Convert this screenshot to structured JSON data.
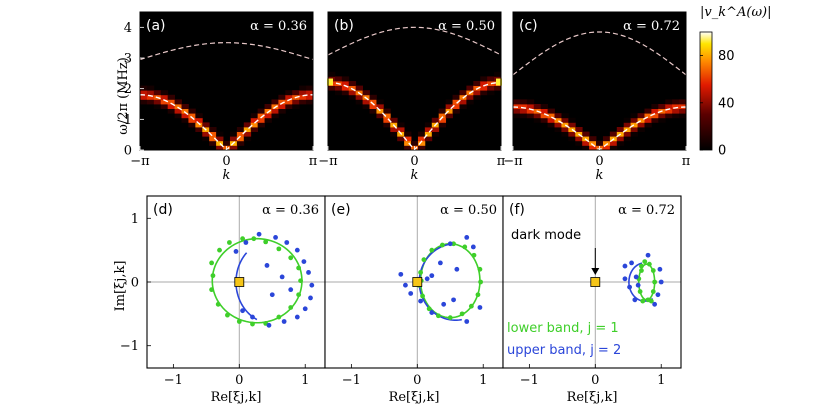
{
  "figure": {
    "top_ylabel": "ω/2π (MHz)",
    "bottom_ylabel": "Im[ξj,k]",
    "k_label": "k",
    "xlabel_bottom": "Re[ξj,k]",
    "colorbar": {
      "label": "|v_k^A(ω)|",
      "ticks": [
        0,
        40,
        80
      ],
      "range": [
        0,
        100
      ]
    }
  },
  "chart_data": [
    {
      "type": "heatmap",
      "panel": "(a)",
      "alpha_text": "α = 0.36",
      "alpha": 0.36,
      "xlim": [
        -3.1416,
        3.1416
      ],
      "ylim": [
        0,
        4.5
      ],
      "xticks": [
        {
          "v": -3.1416,
          "t": "−π"
        },
        {
          "v": 0,
          "t": "0"
        },
        {
          "v": 3.1416,
          "t": "π"
        }
      ],
      "yticks": [
        0,
        1,
        2,
        3,
        4
      ],
      "lower_band": {
        "offset": 0,
        "amplitude": 1.8
      },
      "upper_band": {
        "offset": 2.95,
        "amplitude": 0.55
      },
      "xlabel": "k"
    },
    {
      "type": "heatmap",
      "panel": "(b)",
      "alpha_text": "α = 0.50",
      "alpha": 0.5,
      "xlim": [
        -3.1416,
        3.1416
      ],
      "ylim": [
        0,
        4.5
      ],
      "xticks": [
        {
          "v": -3.1416,
          "t": "−π"
        },
        {
          "v": 0,
          "t": "0"
        },
        {
          "v": 3.1416,
          "t": "π"
        }
      ],
      "yticks": [
        0,
        1,
        2,
        3,
        4
      ],
      "lower_band": {
        "offset": 0,
        "amplitude": 2.2
      },
      "upper_band": {
        "offset": 3.1,
        "amplitude": 0.9
      },
      "xlabel": "k"
    },
    {
      "type": "heatmap",
      "panel": "(c)",
      "alpha_text": "α = 0.72",
      "alpha": 0.72,
      "xlim": [
        -3.1416,
        3.1416
      ],
      "ylim": [
        0,
        4.5
      ],
      "xticks": [
        {
          "v": -3.1416,
          "t": "−π"
        },
        {
          "v": 0,
          "t": "0"
        },
        {
          "v": 3.1416,
          "t": "π"
        }
      ],
      "yticks": [
        0,
        1,
        2,
        3,
        4
      ],
      "lower_band": {
        "offset": 0,
        "amplitude": 1.4
      },
      "upper_band": {
        "offset": 2.45,
        "amplitude": 1.4
      },
      "xlabel": "k"
    },
    {
      "type": "scatter",
      "panel": "(d)",
      "alpha_text": "α = 0.36",
      "xlim": [
        -1.4,
        1.3
      ],
      "ylim": [
        -1.35,
        1.35
      ],
      "xticks": [
        -1,
        0,
        1
      ],
      "yticks": [
        -1,
        0,
        1
      ],
      "dark_mode": [
        0,
        0
      ],
      "series": [
        {
          "name": "lower band, j = 1",
          "color": "#3fcf2a",
          "points": [
            [
              -0.4,
              0.1
            ],
            [
              -0.42,
              0.3
            ],
            [
              -0.3,
              0.5
            ],
            [
              -0.15,
              0.62
            ],
            [
              0.05,
              0.68
            ],
            [
              0.22,
              0.68
            ],
            [
              0.4,
              0.63
            ],
            [
              0.6,
              0.52
            ],
            [
              0.78,
              0.38
            ],
            [
              0.9,
              0.22
            ],
            [
              0.93,
              0.02
            ],
            [
              0.9,
              -0.2
            ],
            [
              0.78,
              -0.4
            ],
            [
              0.6,
              -0.55
            ],
            [
              0.4,
              -0.65
            ],
            [
              0.2,
              -0.66
            ],
            [
              0.0,
              -0.62
            ],
            [
              -0.18,
              -0.52
            ],
            [
              -0.32,
              -0.35
            ],
            [
              -0.42,
              -0.12
            ]
          ],
          "curve": {
            "cx": 0.27,
            "cy": 0.02,
            "rx": 0.68,
            "ry": 0.66
          }
        },
        {
          "name": "upper band, j = 2",
          "color": "#2b46d9",
          "points": [
            [
              -0.05,
              0.48
            ],
            [
              0.1,
              0.62
            ],
            [
              0.3,
              0.75
            ],
            [
              0.55,
              0.7
            ],
            [
              0.72,
              0.62
            ],
            [
              0.88,
              0.5
            ],
            [
              0.98,
              0.32
            ],
            [
              1.05,
              0.15
            ],
            [
              1.1,
              -0.05
            ],
            [
              1.08,
              -0.25
            ],
            [
              1.0,
              -0.42
            ],
            [
              0.88,
              -0.55
            ],
            [
              0.68,
              -0.62
            ],
            [
              0.45,
              -0.68
            ],
            [
              0.2,
              -0.55
            ],
            [
              0.05,
              -0.45
            ],
            [
              0.42,
              0.26
            ],
            [
              0.65,
              0.08
            ],
            [
              0.78,
              -0.12
            ],
            [
              0.5,
              -0.2
            ]
          ],
          "curve": {
            "cx": 0.5,
            "cy": 0.0,
            "rx": 0.55,
            "ry": 0.65,
            "from": 135,
            "to": 245
          }
        }
      ]
    },
    {
      "type": "scatter",
      "panel": "(e)",
      "alpha_text": "α = 0.50",
      "xlim": [
        -1.4,
        1.3
      ],
      "ylim": [
        -1.35,
        1.35
      ],
      "xticks": [
        -1,
        0,
        1
      ],
      "yticks": [
        -1,
        0,
        1
      ],
      "dark_mode": [
        0,
        0
      ],
      "series": [
        {
          "name": "lower band, j = 1",
          "color": "#3fcf2a",
          "points": [
            [
              0.05,
              0.15
            ],
            [
              0.1,
              0.35
            ],
            [
              0.22,
              0.5
            ],
            [
              0.38,
              0.58
            ],
            [
              0.55,
              0.6
            ],
            [
              0.72,
              0.55
            ],
            [
              0.86,
              0.42
            ],
            [
              0.95,
              0.2
            ],
            [
              0.96,
              0.0
            ],
            [
              0.92,
              -0.2
            ],
            [
              0.82,
              -0.38
            ],
            [
              0.68,
              -0.5
            ],
            [
              0.5,
              -0.56
            ],
            [
              0.32,
              -0.53
            ],
            [
              0.18,
              -0.42
            ],
            [
              0.08,
              -0.22
            ],
            [
              0.02,
              -0.05
            ],
            [
              0.06,
              0.02
            ]
          ],
          "curve": {
            "cx": 0.5,
            "cy": 0.02,
            "rx": 0.45,
            "ry": 0.58
          }
        },
        {
          "name": "upper band, j = 2",
          "color": "#2b46d9",
          "points": [
            [
              -0.25,
              0.12
            ],
            [
              -0.18,
              -0.05
            ],
            [
              -0.1,
              -0.18
            ],
            [
              0.05,
              -0.3
            ],
            [
              0.15,
              0.05
            ],
            [
              0.22,
              0.1
            ],
            [
              0.35,
              0.3
            ],
            [
              0.4,
              -0.35
            ],
            [
              0.55,
              -0.28
            ],
            [
              0.6,
              0.2
            ],
            [
              0.75,
              0.7
            ],
            [
              0.85,
              0.55
            ],
            [
              0.5,
              0.6
            ],
            [
              0.22,
              -0.48
            ],
            [
              0.75,
              -0.62
            ],
            [
              0.95,
              -0.4
            ]
          ],
          "curve": {
            "cx": 0.58,
            "cy": 0.0,
            "rx": 0.55,
            "ry": 0.6,
            "from": 100,
            "to": 280
          }
        }
      ]
    },
    {
      "type": "scatter",
      "panel": "(f)",
      "alpha_text": "α = 0.72",
      "xlim": [
        -1.4,
        1.3
      ],
      "ylim": [
        -1.35,
        1.35
      ],
      "xticks": [
        -1,
        0,
        1
      ],
      "yticks": [
        -1,
        0,
        1
      ],
      "dark_mode": [
        0,
        0
      ],
      "annotation": "dark mode",
      "legend": [
        "lower band, j = 1",
        "upper band, j = 2"
      ],
      "series": [
        {
          "name": "lower band, j = 1",
          "color": "#3fcf2a",
          "points": [
            [
              0.7,
              0.25
            ],
            [
              0.75,
              0.32
            ],
            [
              0.82,
              0.28
            ],
            [
              0.88,
              0.18
            ],
            [
              0.9,
              0.0
            ],
            [
              0.88,
              -0.15
            ],
            [
              0.8,
              -0.28
            ],
            [
              0.72,
              -0.3
            ],
            [
              0.68,
              -0.15
            ],
            [
              0.66,
              0.05
            ],
            [
              0.7,
              0.18
            ],
            [
              0.85,
              -0.3
            ]
          ],
          "curve": {
            "cx": 0.78,
            "cy": 0.0,
            "rx": 0.12,
            "ry": 0.28
          }
        },
        {
          "name": "upper band, j = 2",
          "color": "#2b46d9",
          "points": [
            [
              0.45,
              0.25
            ],
            [
              0.55,
              0.3
            ],
            [
              0.62,
              0.08
            ],
            [
              0.65,
              -0.05
            ],
            [
              0.98,
              0.2
            ],
            [
              1.0,
              0.0
            ],
            [
              0.95,
              -0.2
            ],
            [
              0.9,
              -0.35
            ],
            [
              0.6,
              -0.28
            ],
            [
              0.52,
              -0.08
            ],
            [
              0.45,
              0.05
            ],
            [
              0.8,
              0.42
            ]
          ],
          "curve": {
            "cx": 0.75,
            "cy": 0.0,
            "rx": 0.24,
            "ry": 0.3,
            "from": 100,
            "to": 300
          }
        }
      ]
    }
  ]
}
